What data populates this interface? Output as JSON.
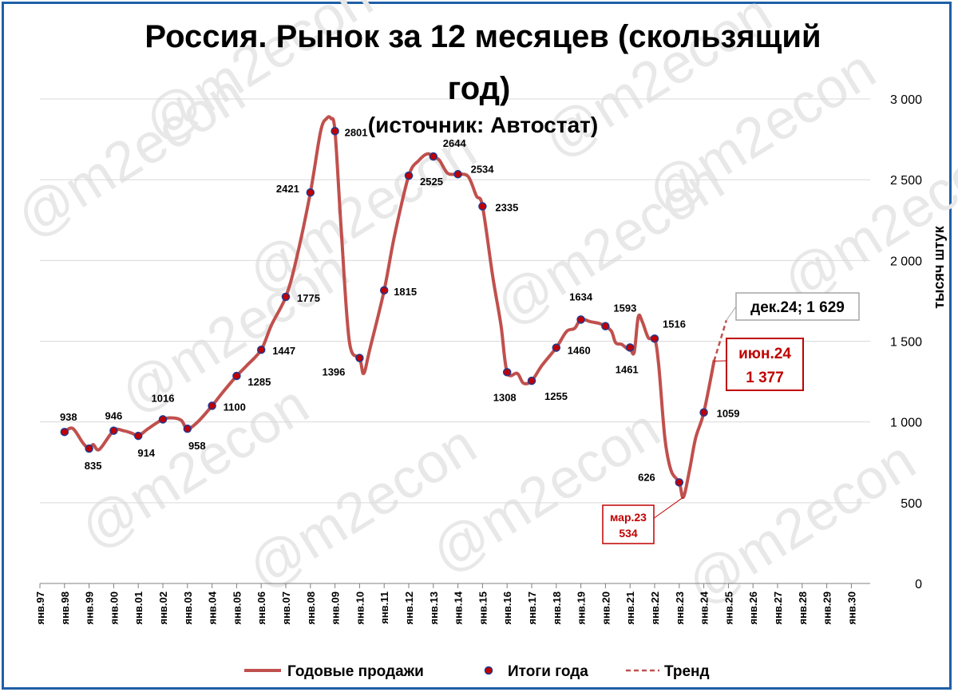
{
  "title_line1": "Россия. Рынок за 12 месяцев (скользящий",
  "title_line2": "год)",
  "subtitle": "(источник: Автостат)",
  "watermark": "@m2econ",
  "chart_data": {
    "type": "line",
    "ylabel": "тысяч штук",
    "ylim": [
      0,
      3000
    ],
    "y_ticks": [
      0,
      500,
      1000,
      1500,
      2000,
      2500,
      3000
    ],
    "y_tick_labels": [
      "0",
      "500",
      "1 000",
      "1 500",
      "2 000",
      "2 500",
      "3 000"
    ],
    "x_tick_labels": [
      "янв.97",
      "янв.98",
      "янв.99",
      "янв.00",
      "янв.01",
      "янв.02",
      "янв.03",
      "янв.04",
      "янв.05",
      "янв.06",
      "янв.07",
      "янв.08",
      "янв.09",
      "янв.10",
      "янв.11",
      "янв.12",
      "янв.13",
      "янв.14",
      "янв.15",
      "янв.16",
      "янв.17",
      "янв.18",
      "янв.19",
      "янв.20",
      "янв.21",
      "янв.22",
      "янв.23",
      "янв.24",
      "янв.25",
      "янв.26",
      "янв.27",
      "янв.28",
      "янв.29",
      "янв.30"
    ],
    "grid": true,
    "legend_position": "bottom",
    "colors": {
      "sales": "#c0504d",
      "marker_fill": "#c00000",
      "marker_edge": "#1f3a93",
      "trend": "#c0504d",
      "callout_red": "#c00000",
      "frame": "#1f5fa8"
    },
    "series": [
      {
        "name": "Годовые продажи",
        "x": [
          "1998-01",
          "1998-05",
          "1998-10",
          "1999-01",
          "1999-03",
          "1999-06",
          "2000-01",
          "2000-06",
          "2000-10",
          "2001-01",
          "2001-06",
          "2002-01",
          "2002-06",
          "2002-10",
          "2003-01",
          "2003-06",
          "2004-01",
          "2004-06",
          "2005-01",
          "2005-06",
          "2006-01",
          "2006-06",
          "2007-01",
          "2007-06",
          "2008-01",
          "2008-06",
          "2008-09",
          "2008-11",
          "2009-01",
          "2009-04",
          "2009-08",
          "2010-01",
          "2010-03",
          "2010-06",
          "2011-01",
          "2011-06",
          "2012-01",
          "2012-06",
          "2012-10",
          "2013-01",
          "2013-04",
          "2013-08",
          "2014-01",
          "2014-06",
          "2014-10",
          "2015-01",
          "2015-06",
          "2015-10",
          "2016-01",
          "2016-06",
          "2016-09",
          "2017-01",
          "2017-06",
          "2018-01",
          "2018-06",
          "2018-10",
          "2019-01",
          "2019-06",
          "2019-10",
          "2020-01",
          "2020-04",
          "2020-06",
          "2020-09",
          "2020-12",
          "2021-01",
          "2021-03",
          "2021-05",
          "2021-07",
          "2021-10",
          "2022-01",
          "2022-03",
          "2022-06",
          "2022-09",
          "2023-01",
          "2023-03",
          "2023-06",
          "2023-09",
          "2024-01",
          "2024-06"
        ],
        "values": [
          938,
          960,
          870,
          835,
          860,
          830,
          946,
          945,
          930,
          914,
          960,
          1016,
          1025,
          1010,
          958,
          1000,
          1100,
          1180,
          1285,
          1350,
          1447,
          1600,
          1775,
          2000,
          2421,
          2800,
          2880,
          2880,
          2801,
          2200,
          1500,
          1396,
          1300,
          1450,
          1815,
          2150,
          2525,
          2620,
          2660,
          2644,
          2620,
          2540,
          2534,
          2520,
          2400,
          2335,
          1900,
          1600,
          1308,
          1300,
          1240,
          1255,
          1350,
          1460,
          1560,
          1580,
          1634,
          1620,
          1610,
          1593,
          1560,
          1490,
          1480,
          1450,
          1461,
          1430,
          1650,
          1620,
          1520,
          1516,
          1350,
          900,
          700,
          626,
          534,
          700,
          900,
          1059,
          1377
        ]
      },
      {
        "name": "Итоги года",
        "x": [
          "1998-01",
          "1999-01",
          "2000-01",
          "2001-01",
          "2002-01",
          "2003-01",
          "2004-01",
          "2005-01",
          "2006-01",
          "2007-01",
          "2008-01",
          "2009-01",
          "2010-01",
          "2011-01",
          "2012-01",
          "2013-01",
          "2014-01",
          "2015-01",
          "2016-01",
          "2017-01",
          "2018-01",
          "2019-01",
          "2020-01",
          "2021-01",
          "2022-01",
          "2023-01",
          "2024-01"
        ],
        "values": [
          938,
          835,
          946,
          914,
          1016,
          958,
          1100,
          1285,
          1447,
          1775,
          2421,
          2801,
          1396,
          1815,
          2525,
          2644,
          2534,
          2335,
          1308,
          1255,
          1460,
          1634,
          1593,
          1461,
          1516,
          626,
          1059
        ]
      },
      {
        "name": "Тренд",
        "x": [
          "2024-06",
          "2024-12"
        ],
        "values": [
          1377,
          1629
        ]
      }
    ],
    "annotations": [
      {
        "text": "дек.24; 1 629",
        "x": "2024-12",
        "y": 1629
      },
      {
        "text": "июн.24",
        "text2": "1 377",
        "x": "2024-06",
        "y": 1377
      },
      {
        "text": "мар.23",
        "text2": "534",
        "x": "2023-03",
        "y": 534
      }
    ]
  }
}
